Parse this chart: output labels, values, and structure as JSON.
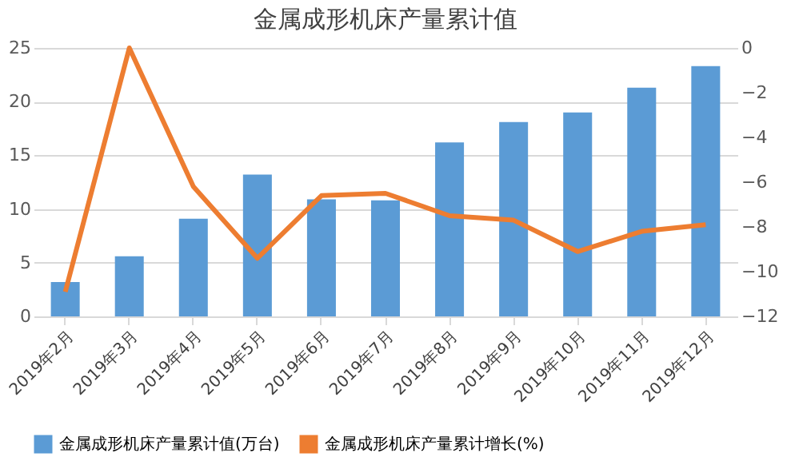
{
  "chart_data": {
    "type": "bar",
    "title": "金属成形机床产量累计值",
    "categories": [
      "2019年2月",
      "2019年3月",
      "2019年4月",
      "2019年5月",
      "2019年6月",
      "2019年7月",
      "2019年8月",
      "2019年9月",
      "2019年10月",
      "2019年11月",
      "2019年12月"
    ],
    "series": [
      {
        "name": "金属成形机床产量累计值(万台)",
        "color": "#5b9bd5",
        "values": [
          3.2,
          5.6,
          9.1,
          13.2,
          10.9,
          10.8,
          16.2,
          18.1,
          19.0,
          21.3,
          23.3
        ]
      },
      {
        "name": "金属成形机床产量累计增长(%)",
        "color": "#ed7d31",
        "type": "line",
        "axis": "y2",
        "values": [
          -10.9,
          0,
          -6.2,
          -9.4,
          -6.6,
          -6.5,
          -7.5,
          -7.7,
          -9.1,
          -8.2,
          -7.9
        ]
      }
    ],
    "ylim": [
      0,
      25
    ],
    "yticks": [
      0,
      5,
      10,
      15,
      20,
      25
    ],
    "y2lim": [
      -12,
      0
    ],
    "y2ticks": [
      -12,
      -10,
      -8,
      -6,
      -4,
      -2,
      0
    ],
    "grid": "y",
    "legend": "bottom"
  }
}
